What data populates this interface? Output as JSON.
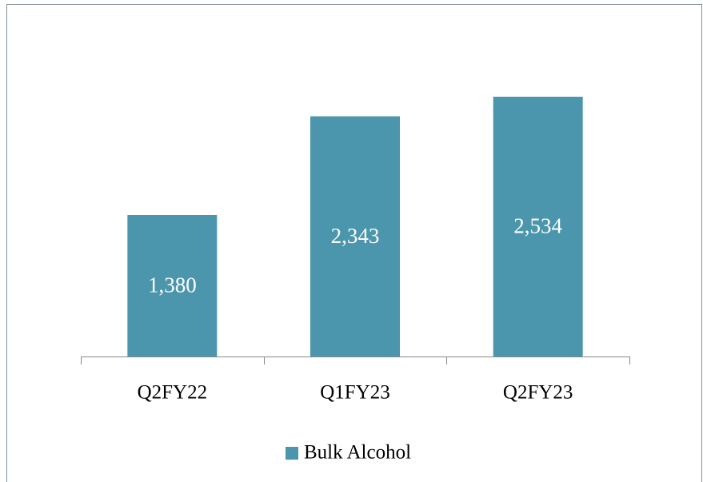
{
  "chart_data": {
    "type": "bar",
    "categories": [
      "Q2FY22",
      "Q1FY23",
      "Q2FY23"
    ],
    "series": [
      {
        "name": "Bulk Alcohol",
        "color": "#4b96ad",
        "values": [
          1380,
          2343,
          2534
        ],
        "value_labels": [
          "1,380",
          "2,343",
          "2,534"
        ]
      }
    ],
    "legend": "bottom"
  }
}
